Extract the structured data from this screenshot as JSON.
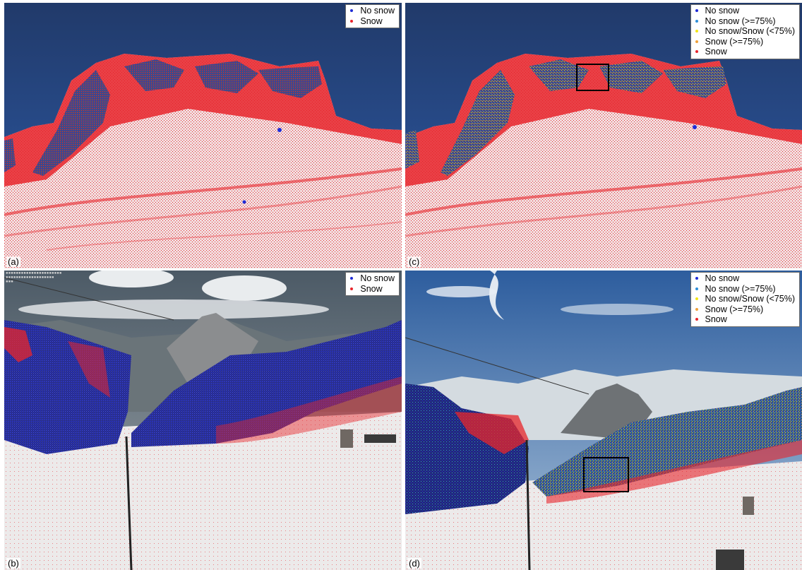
{
  "colors": {
    "no_snow": "#1f2bd6",
    "no_snow_75": "#2f8fd8",
    "uncertain": "#f2e516",
    "snow_75": "#f0a23a",
    "snow": "#e8252b"
  },
  "panels": {
    "a": {
      "letter": "(a)",
      "legend": [
        {
          "label": "No snow",
          "color": "#1f2bd6"
        },
        {
          "label": "Snow",
          "color": "#e8252b"
        }
      ]
    },
    "c": {
      "letter": "(c)",
      "legend": [
        {
          "label": "No snow",
          "color": "#1f2bd6"
        },
        {
          "label": "No snow (>=75%)",
          "color": "#2f8fd8"
        },
        {
          "label": "No snow/Snow (<75%)",
          "color": "#f2e516"
        },
        {
          "label": "Snow (>=75%)",
          "color": "#f0a23a"
        },
        {
          "label": "Snow",
          "color": "#e8252b"
        }
      ]
    },
    "b": {
      "letter": "(b)",
      "legend": [
        {
          "label": "No snow",
          "color": "#1f2bd6"
        },
        {
          "label": "Snow",
          "color": "#e8252b"
        }
      ]
    },
    "d": {
      "letter": "(d)",
      "legend": [
        {
          "label": "No snow",
          "color": "#1f2bd6"
        },
        {
          "label": "No snow (>=75%)",
          "color": "#2f8fd8"
        },
        {
          "label": "No snow/Snow (<75%)",
          "color": "#f2e516"
        },
        {
          "label": "Snow (>=75%)",
          "color": "#f0a23a"
        },
        {
          "label": "Snow",
          "color": "#e8252b"
        }
      ]
    }
  }
}
